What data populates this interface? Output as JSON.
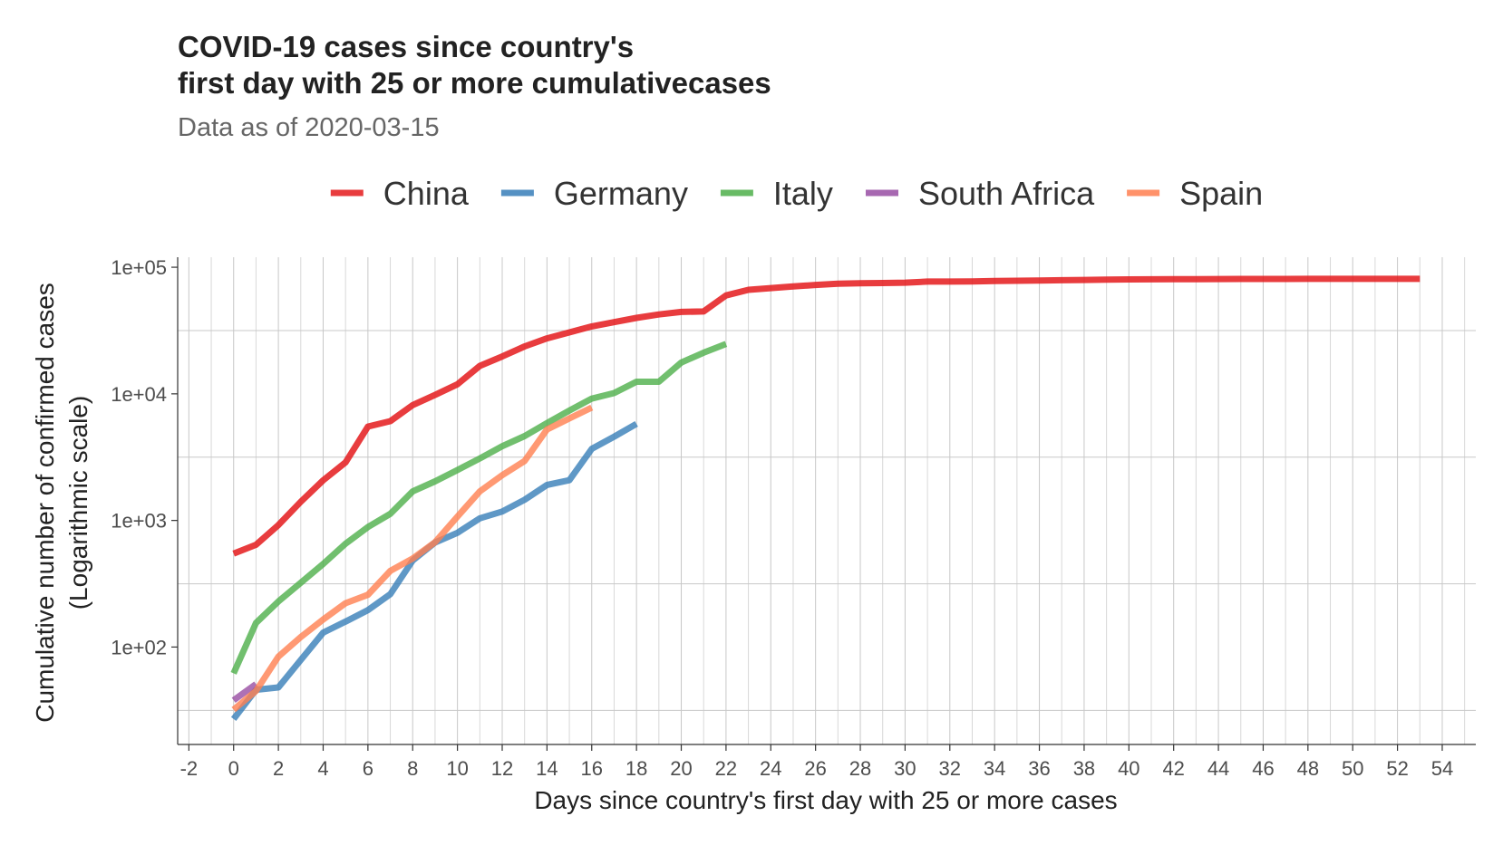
{
  "chart_data": {
    "type": "line",
    "title_line1": "COVID-19 cases since country's",
    "title_line2": "first day with 25 or more cumulativecases",
    "subtitle": "Data as of 2020-03-15",
    "xlabel": "Days since country's first day with 25 or more cases",
    "ylabel_line1": "Cumulative number of confirmed cases",
    "ylabel_line2": "(Logarithmic scale)",
    "y_scale": "log10",
    "xlim": [
      -2.5,
      55.5
    ],
    "ylim": [
      17,
      120000
    ],
    "x_ticks": [
      -2,
      0,
      2,
      4,
      6,
      8,
      10,
      12,
      14,
      16,
      18,
      20,
      22,
      24,
      26,
      28,
      30,
      32,
      34,
      36,
      38,
      40,
      42,
      44,
      46,
      48,
      50,
      52,
      54
    ],
    "y_ticks": [
      {
        "value": 100,
        "label": "1e+02"
      },
      {
        "value": 1000,
        "label": "1e+03"
      },
      {
        "value": 10000,
        "label": "1e+04"
      },
      {
        "value": 100000,
        "label": "1e+05"
      }
    ],
    "y_minor_grid": [
      31.6,
      316,
      3160,
      31600
    ],
    "grid": true,
    "legend_position": "top",
    "series": [
      {
        "name": "China",
        "color": "#e41a1c",
        "x": [
          0,
          1,
          2,
          3,
          4,
          5,
          6,
          7,
          8,
          9,
          10,
          11,
          12,
          13,
          14,
          15,
          16,
          17,
          18,
          19,
          20,
          21,
          22,
          23,
          24,
          25,
          26,
          27,
          28,
          29,
          30,
          31,
          32,
          33,
          34,
          35,
          36,
          37,
          38,
          39,
          40,
          41,
          42,
          43,
          44,
          45,
          46,
          47,
          48,
          49,
          50,
          51,
          52,
          53
        ],
        "y": [
          548,
          643,
          920,
          1406,
          2075,
          2877,
          5509,
          6087,
          8141,
          9802,
          11891,
          16630,
          19716,
          23707,
          27440,
          30587,
          34110,
          36814,
          39829,
          42354,
          44386,
          44759,
          59895,
          66358,
          68413,
          70513,
          72434,
          74211,
          74619,
          75077,
          75550,
          77001,
          77022,
          77241,
          77754,
          78166,
          78600,
          78928,
          79356,
          79932,
          80136,
          80261,
          80386,
          80537,
          80690,
          80770,
          80823,
          80860,
          80887,
          80921,
          80932,
          80945,
          80977,
          81003
        ]
      },
      {
        "name": "Germany",
        "color": "#377eb8",
        "x": [
          0,
          1,
          2,
          3,
          4,
          5,
          6,
          7,
          8,
          9,
          10,
          11,
          12,
          13,
          14,
          15,
          16,
          17,
          18
        ],
        "y": [
          27,
          46,
          48,
          79,
          130,
          159,
          196,
          262,
          482,
          670,
          799,
          1040,
          1176,
          1457,
          1908,
          2078,
          3675,
          4585,
          5795
        ]
      },
      {
        "name": "Italy",
        "color": "#4daf4a",
        "x": [
          0,
          1,
          2,
          3,
          4,
          5,
          6,
          7,
          8,
          9,
          10,
          11,
          12,
          13,
          14,
          15,
          16,
          17,
          18,
          19,
          20,
          21,
          22
        ],
        "y": [
          62,
          155,
          229,
          322,
          453,
          655,
          888,
          1128,
          1694,
          2036,
          2502,
          3089,
          3858,
          4636,
          5883,
          7375,
          9172,
          10149,
          12462,
          12462,
          17660,
          21157,
          24747
        ]
      },
      {
        "name": "South Africa",
        "color": "#984ea3",
        "x": [
          0,
          1
        ],
        "y": [
          38,
          51
        ]
      },
      {
        "name": "Spain",
        "color": "#ff7f50",
        "x": [
          0,
          1,
          2,
          3,
          4,
          5,
          6,
          7,
          8,
          9,
          10,
          11,
          12,
          13,
          14,
          15,
          16
        ],
        "y": [
          32,
          45,
          84,
          120,
          165,
          222,
          259,
          400,
          500,
          673,
          1073,
          1695,
          2277,
          2950,
          5232,
          6391,
          7798
        ]
      }
    ]
  }
}
